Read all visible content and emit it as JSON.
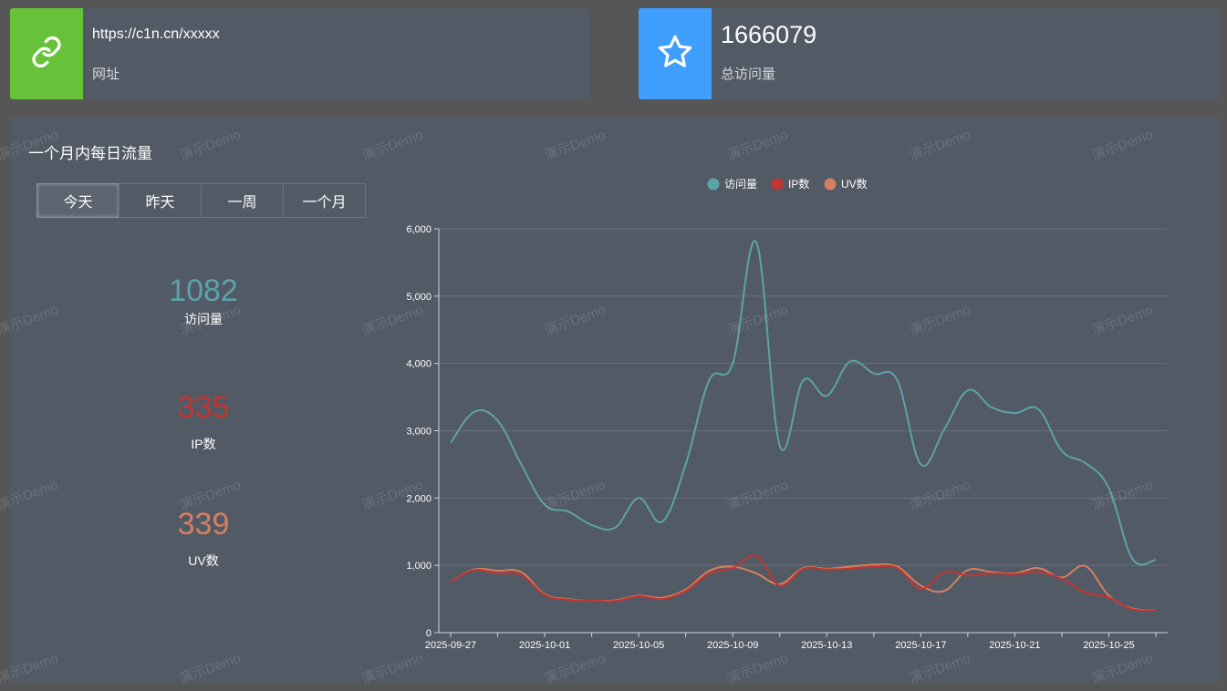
{
  "url_card": {
    "url": "https://c1n.cn/xxxxx",
    "label": "网址",
    "icon": "link-icon",
    "color": "#67c23a"
  },
  "visits_card": {
    "total": "1666079",
    "label": "总访问量",
    "icon": "star-icon",
    "color": "#409eff"
  },
  "panel": {
    "title": "一个月内每日流量",
    "tabs": [
      "今天",
      "昨天",
      "一周",
      "一个月"
    ],
    "active_tab": "今天"
  },
  "stats": {
    "visits": {
      "value": "1082",
      "label": "访问量",
      "color": "#5ba3a8"
    },
    "ip": {
      "value": "335",
      "label": "IP数",
      "color": "#c23531"
    },
    "uv": {
      "value": "339",
      "label": "UV数",
      "color": "#d4805f"
    }
  },
  "watermark_text": "演示Demo",
  "chart_data": {
    "type": "line",
    "title": "",
    "legend": [
      "访问量",
      "IP数",
      "UV数"
    ],
    "legend_position": "top-center",
    "x": [
      "2025-09-27",
      "2025-09-28",
      "2025-09-29",
      "2025-09-30",
      "2025-10-01",
      "2025-10-02",
      "2025-10-03",
      "2025-10-04",
      "2025-10-05",
      "2025-10-06",
      "2025-10-07",
      "2025-10-08",
      "2025-10-09",
      "2025-10-10",
      "2025-10-11",
      "2025-10-12",
      "2025-10-13",
      "2025-10-14",
      "2025-10-15",
      "2025-10-16",
      "2025-10-17",
      "2025-10-18",
      "2025-10-19",
      "2025-10-20",
      "2025-10-21",
      "2025-10-22",
      "2025-10-23",
      "2025-10-24",
      "2025-10-25",
      "2025-10-26",
      "2025-10-27"
    ],
    "x_tick_labels": [
      "2025-09-27",
      "2025-10-01",
      "2025-10-05",
      "2025-10-09",
      "2025-10-13",
      "2025-10-17",
      "2025-10-21",
      "2025-10-25"
    ],
    "y_ticks": [
      "0",
      "1,000",
      "2,000",
      "3,000",
      "4,000",
      "5,000",
      "6,000"
    ],
    "ylim": [
      0,
      6000
    ],
    "grid": true,
    "series": [
      {
        "name": "访问量",
        "color": "#5ba3a8",
        "values": [
          2820,
          3280,
          3150,
          2500,
          1900,
          1800,
          1600,
          1560,
          2000,
          1650,
          2500,
          3750,
          4000,
          5800,
          2780,
          3750,
          3520,
          4030,
          3850,
          3750,
          2500,
          3020,
          3600,
          3350,
          3260,
          3320,
          2700,
          2520,
          2150,
          1100,
          1082
        ]
      },
      {
        "name": "IP数",
        "color": "#c23531",
        "values": [
          760,
          930,
          880,
          860,
          560,
          490,
          480,
          470,
          540,
          500,
          620,
          880,
          960,
          1140,
          700,
          950,
          940,
          950,
          980,
          960,
          650,
          900,
          850,
          880,
          870,
          900,
          800,
          600,
          520,
          350,
          335
        ]
      },
      {
        "name": "UV数",
        "color": "#d4805f",
        "values": [
          760,
          940,
          920,
          900,
          570,
          500,
          480,
          480,
          550,
          520,
          640,
          920,
          980,
          880,
          720,
          960,
          950,
          980,
          1010,
          980,
          700,
          620,
          930,
          900,
          880,
          960,
          820,
          990,
          550,
          360,
          339
        ]
      }
    ]
  }
}
